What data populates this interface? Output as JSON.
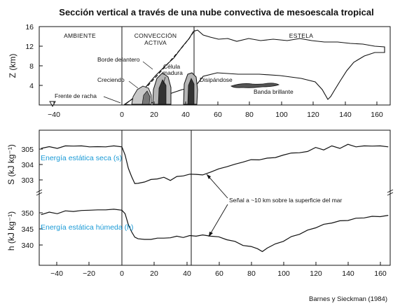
{
  "title": "Sección vertical a través de una nube convectiva de mesoescala tropical",
  "credit": "Barnes y Sieckman (1984)",
  "top_panel": {
    "ylabel": "Z (km)",
    "yticks": [
      "16",
      "12",
      "8",
      "4"
    ],
    "regions": [
      "AMBIENTE",
      "CONVECCIÓN",
      "ACTIVA",
      "ESTELA"
    ],
    "annotations": {
      "leading_edge": "Borde delantero",
      "mature_cell": "Célula",
      "mature_cell2": "madura",
      "growing": "Creciendo",
      "dissipating": "Disipándose",
      "bright_band": "Banda brillante",
      "gust_front": "Frente de racha"
    }
  },
  "middle_panel": {
    "ylabel": "S (kJ kg⁻¹)",
    "yticks": [
      "305",
      "304",
      "303"
    ],
    "series_label": "Energía estática seca (s)"
  },
  "bottom_panel": {
    "ylabel": "h (kJ kg⁻¹)",
    "yticks": [
      "350",
      "345",
      "340"
    ],
    "series_label": "Energía estática húmeda (h)"
  },
  "signal_note": "Señal a ~10 km sobre la superficie del mar",
  "xticks": [
    "−40",
    "−20",
    "0",
    "20",
    "40",
    "60",
    "80",
    "100",
    "120",
    "140",
    "160"
  ],
  "xticks_top": [
    "−40",
    "0",
    "20",
    "40",
    "60",
    "80",
    "100",
    "120",
    "140",
    "160"
  ],
  "colors": {
    "line": "#111111",
    "label": "#1a9ad6",
    "background": "#ffffff"
  },
  "chart_data": [
    {
      "type": "area",
      "xlim": [
        -50,
        170
      ],
      "ylim": [
        0,
        16
      ],
      "ylabel": "Z (km)",
      "xticks": [
        -40,
        0,
        20,
        40,
        60,
        80,
        100,
        120,
        140,
        160
      ],
      "yticks": [
        16,
        12,
        8,
        4
      ],
      "vertical_lines": [
        0,
        45
      ],
      "cloud_outline": {
        "x": [
          2,
          20,
          36,
          44,
          47,
          50,
          60,
          80,
          100,
          120,
          140,
          160,
          165,
          165,
          150,
          140,
          130,
          123,
          118,
          113,
          98,
          78,
          60,
          51,
          47,
          44,
          40,
          35,
          30,
          24,
          12,
          5,
          2
        ],
        "y": [
          0.2,
          4.5,
          10,
          13.3,
          14.6,
          14.9,
          13.5,
          13.3,
          13.4,
          13.2,
          12.8,
          12.5,
          12.3,
          12.0,
          12.0,
          11.2,
          9.3,
          7.0,
          5.0,
          3.2,
          5.4,
          5.7,
          5.9,
          5.5,
          4.5,
          3.8,
          3.3,
          3.0,
          2.2,
          0.8,
          0.3,
          0.1,
          0.2
        ]
      },
      "bright_band": {
        "x": [
          73,
          116
        ],
        "z": [
          3.6,
          4.2
        ]
      }
    },
    {
      "type": "line",
      "title": "",
      "xlim": [
        -50,
        170
      ],
      "ylim": [
        302.3,
        305.6
      ],
      "ylabel": "S (kJ kg⁻¹)",
      "series": [
        {
          "name": "Energía estática seca (s)",
          "x": [
            -50,
            -45,
            -40,
            -35,
            -30,
            -25,
            -20,
            -15,
            -10,
            -5,
            0,
            2,
            4,
            6,
            8,
            10,
            14,
            18,
            22,
            26,
            30,
            34,
            38,
            42,
            46,
            50,
            55,
            60,
            65,
            70,
            75,
            80,
            85,
            90,
            95,
            100,
            105,
            110,
            115,
            120,
            125,
            130,
            135,
            140,
            145,
            150,
            155,
            160,
            165
          ],
          "y": [
            305.1,
            305.15,
            305.1,
            305.2,
            305.25,
            305.2,
            305.2,
            305.15,
            305.2,
            305.2,
            305.2,
            304.6,
            303.8,
            303.2,
            302.8,
            302.75,
            302.9,
            303.0,
            303.1,
            303.15,
            303.0,
            303.2,
            303.3,
            303.35,
            303.4,
            303.3,
            303.55,
            303.7,
            303.9,
            304.0,
            304.2,
            304.3,
            304.35,
            304.4,
            304.5,
            304.6,
            304.8,
            304.75,
            304.9,
            305.1,
            305.0,
            305.2,
            305.1,
            305.3,
            305.2,
            305.2,
            305.25,
            305.2,
            305.2
          ]
        }
      ]
    },
    {
      "type": "line",
      "title": "",
      "xlim": [
        -50,
        170
      ],
      "ylim": [
        337,
        352.5
      ],
      "ylabel": "h (kJ kg⁻¹)",
      "series": [
        {
          "name": "Energía estática húmeda (h)",
          "x": [
            -50,
            -45,
            -40,
            -35,
            -30,
            -25,
            -20,
            -15,
            -10,
            -5,
            0,
            2,
            4,
            6,
            8,
            10,
            14,
            18,
            22,
            26,
            30,
            34,
            38,
            42,
            46,
            50,
            55,
            60,
            65,
            70,
            75,
            80,
            84,
            87,
            90,
            95,
            100,
            105,
            110,
            115,
            120,
            125,
            130,
            135,
            140,
            145,
            150,
            155,
            160,
            165
          ],
          "y": [
            349.6,
            350.1,
            349.9,
            350.5,
            350.6,
            350.6,
            351.0,
            350.8,
            351.1,
            351.0,
            351.0,
            349.6,
            346.5,
            344.0,
            342.6,
            341.8,
            341.9,
            341.6,
            342.3,
            342.0,
            342.4,
            342.6,
            342.5,
            342.8,
            342.9,
            343.0,
            342.9,
            342.4,
            341.8,
            341.0,
            340.0,
            339.4,
            339.0,
            337.8,
            339.2,
            340.2,
            341.3,
            342.5,
            343.5,
            344.5,
            345.5,
            346.3,
            347.0,
            347.4,
            347.8,
            348.2,
            348.6,
            348.8,
            349.0,
            349.1
          ]
        }
      ]
    }
  ]
}
